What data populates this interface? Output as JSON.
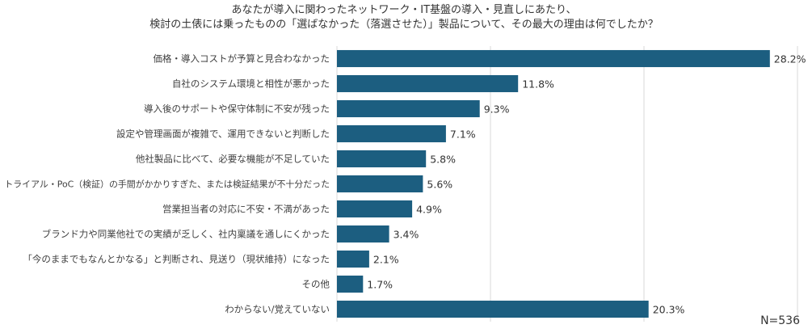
{
  "chart_data": {
    "type": "bar",
    "orientation": "horizontal",
    "title_lines": [
      "あなたが導入に関わったネットワーク・IT基盤の導入・見直しにあたり、",
      "検討の土俵には乗ったものの「選ばなかった（落選させた）」製品について、その最大の理由は何でしたか？"
    ],
    "categories": [
      "価格・導入コストが予算と見合わなかった",
      "自社のシステム環境と相性が悪かった",
      "導入後のサポートや保守体制に不安が残った",
      "設定や管理画面が複雑で、運用できないと判断した",
      "他社製品に比べて、必要な機能が不足していた",
      "トライアル・PoC（検証）の手間がかかりすぎた、または検証結果が不十分だった",
      "営業担当者の対応に不安・不満があった",
      "ブランド力や同業他社での実績が乏しく、社内稟議を通しにくかった",
      "「今のままでもなんとかなる」と判断され、見送り（現状維持）になった",
      "その他",
      "わからない/覚えていない"
    ],
    "values": [
      28.2,
      11.8,
      9.3,
      7.1,
      5.8,
      5.6,
      4.9,
      3.4,
      2.1,
      1.7,
      20.3
    ],
    "value_labels": [
      "28.2%",
      "11.8%",
      "9.3%",
      "7.1%",
      "5.8%",
      "5.6%",
      "4.9%",
      "3.4%",
      "2.1%",
      "1.7%",
      "20.3%"
    ],
    "xlim": [
      0,
      30
    ],
    "grid": true,
    "bar_color": "#1c5e80",
    "sample_note": "N=536"
  }
}
